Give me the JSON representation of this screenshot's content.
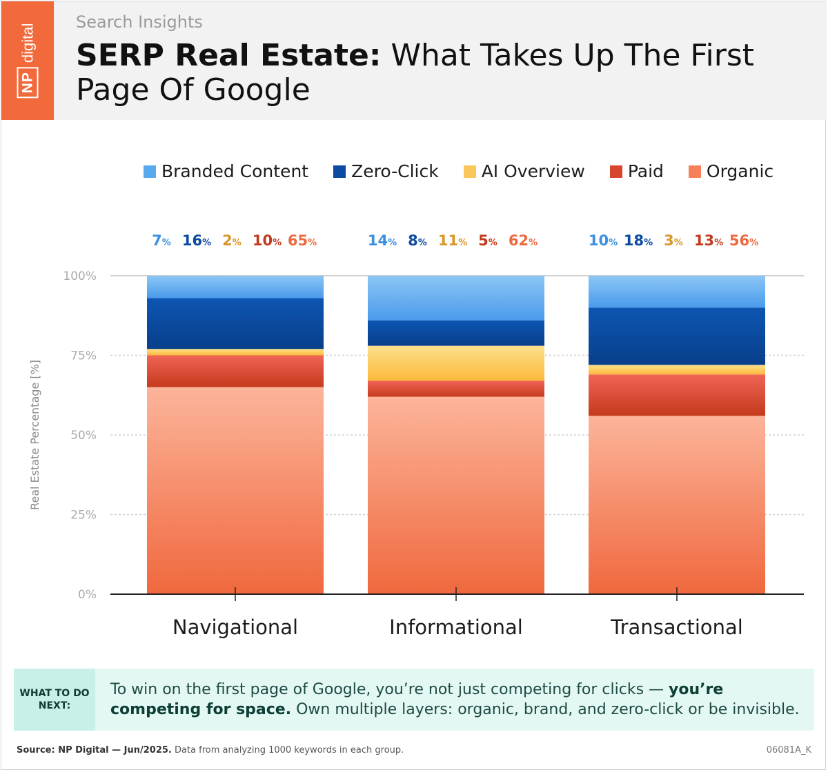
{
  "header": {
    "eyebrow": "Search Insights",
    "title_bold": "SERP Real Estate:",
    "title_rest": " What Takes Up The First Page Of Google",
    "brand_np": "NP",
    "brand_digital": "digital"
  },
  "colors": {
    "branded": "#5aa9ee",
    "zero_click": "#0b4aa0",
    "ai_overview": "#fcc75a",
    "paid": "#d8452e",
    "organic": "#f5805a",
    "brand_orange": "#f26a3b"
  },
  "chart_data": {
    "type": "bar",
    "stacked": true,
    "categories": [
      "Navigational",
      "Informational",
      "Transactional"
    ],
    "series": [
      {
        "name": "Organic",
        "key": "organic",
        "values": [
          65,
          62,
          56
        ]
      },
      {
        "name": "Paid",
        "key": "paid",
        "values": [
          10,
          5,
          13
        ]
      },
      {
        "name": "AI Overview",
        "key": "ai_overview",
        "values": [
          2,
          11,
          3
        ]
      },
      {
        "name": "Zero-Click",
        "key": "zero_click",
        "values": [
          16,
          8,
          18
        ]
      },
      {
        "name": "Branded Content",
        "key": "branded",
        "values": [
          7,
          14,
          10
        ]
      }
    ],
    "legend_order": [
      "Branded Content",
      "Zero-Click",
      "AI Overview",
      "Paid",
      "Organic"
    ],
    "label_order": [
      "branded",
      "zero_click",
      "ai_overview",
      "paid",
      "organic"
    ],
    "label_colors": {
      "branded": "#3a8fe0",
      "zero_click": "#0b4aa0",
      "ai_overview": "#d9962a",
      "paid": "#c23a1c",
      "organic": "#ec6a3f"
    },
    "yticks": [
      0,
      25,
      50,
      75,
      100
    ],
    "ytick_labels": [
      "0%",
      "25%",
      "50%",
      "75%",
      "100%"
    ],
    "ylabel": "Real Estate Percentage [%]",
    "ylim": [
      0,
      100
    ]
  },
  "tip": {
    "label": "WHAT TO DO NEXT:",
    "text_before": "To win on the first page of Google, you’re not just competing for clicks — ",
    "text_bold": "you’re competing for space.",
    "text_after": " Own multiple layers: organic, brand, and zero-click or be invisible."
  },
  "footer": {
    "source_bold": "Source: NP Digital — Jun/2025.",
    "source_rest": " Data from analyzing 1000 keywords in each group.",
    "code": "06081A_K"
  }
}
